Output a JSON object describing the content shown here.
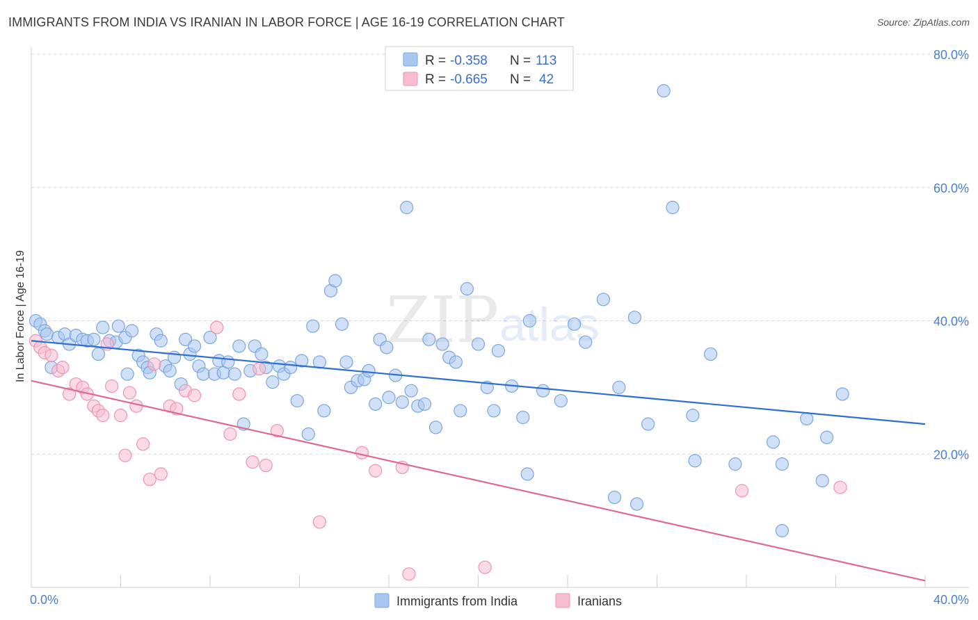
{
  "title": "IMMIGRANTS FROM INDIA VS IRANIAN IN LABOR FORCE | AGE 16-19 CORRELATION CHART",
  "source": "Source: ZipAtlas.com",
  "watermark": {
    "zip": "ZIP",
    "atlas": "atlas"
  },
  "colors": {
    "blue_fill": "#a9c6ef",
    "blue_stroke": "#7aa6e2",
    "blue_line": "#2f6fd0",
    "pink_fill": "#f6bdd0",
    "pink_stroke": "#ee93b3",
    "pink_line": "#e0688f",
    "grid": "#d9d9d9",
    "tick_text": "#4a7fd0"
  },
  "legend": {
    "rows": [
      {
        "r_label": "R =",
        "r_value": "-0.358",
        "n_label": "N =",
        "n_value": "113"
      },
      {
        "r_label": "R =",
        "r_value": "-0.665",
        "n_label": "N =",
        "n_value": "42"
      }
    ]
  },
  "bottom_legend": [
    "Immigrants from India",
    "Iranians"
  ],
  "chart_data": {
    "type": "scatter",
    "title": "IMMIGRANTS FROM INDIA VS IRANIAN IN LABOR FORCE | AGE 16-19 CORRELATION CHART",
    "xlabel": "",
    "ylabel": "In Labor Force | Age 16-19",
    "xlim": [
      0,
      40
    ],
    "ylim": [
      0,
      80
    ],
    "x_tick_labels": [
      "0.0%",
      "40.0%"
    ],
    "y_ticks": [
      20,
      40,
      60,
      80
    ],
    "y_tick_labels": [
      "20.0%",
      "40.0%",
      "60.0%",
      "80.0%"
    ],
    "grid": true,
    "legend_position": "top-center",
    "series": [
      {
        "name": "Immigrants from India",
        "color": "#a9c6ef",
        "trend": {
          "x": [
            0,
            40
          ],
          "y": [
            37.0,
            24.5
          ]
        },
        "points": [
          [
            0.2,
            40.0
          ],
          [
            0.4,
            39.5
          ],
          [
            0.6,
            38.5
          ],
          [
            0.7,
            38.0
          ],
          [
            0.9,
            33.0
          ],
          [
            1.2,
            37.5
          ],
          [
            1.5,
            38.0
          ],
          [
            1.7,
            36.5
          ],
          [
            2.0,
            37.8
          ],
          [
            2.3,
            37.2
          ],
          [
            2.5,
            37.0
          ],
          [
            2.8,
            37.2
          ],
          [
            3.0,
            35.0
          ],
          [
            3.2,
            39.0
          ],
          [
            3.5,
            37.0
          ],
          [
            3.8,
            36.8
          ],
          [
            3.9,
            39.2
          ],
          [
            4.2,
            37.5
          ],
          [
            4.3,
            32.0
          ],
          [
            4.5,
            38.5
          ],
          [
            4.8,
            34.8
          ],
          [
            5.0,
            33.8
          ],
          [
            5.2,
            33.0
          ],
          [
            5.3,
            32.2
          ],
          [
            5.6,
            38.0
          ],
          [
            5.8,
            37.0
          ],
          [
            6.0,
            33.2
          ],
          [
            6.2,
            32.5
          ],
          [
            6.4,
            34.5
          ],
          [
            6.7,
            30.5
          ],
          [
            6.9,
            37.2
          ],
          [
            7.1,
            35.0
          ],
          [
            7.3,
            36.2
          ],
          [
            7.5,
            33.2
          ],
          [
            7.7,
            32.0
          ],
          [
            8.0,
            37.5
          ],
          [
            8.2,
            32.0
          ],
          [
            8.4,
            34.0
          ],
          [
            8.6,
            32.2
          ],
          [
            8.8,
            33.8
          ],
          [
            9.1,
            32.0
          ],
          [
            9.3,
            36.2
          ],
          [
            9.5,
            24.5
          ],
          [
            9.8,
            32.5
          ],
          [
            10.0,
            36.2
          ],
          [
            10.3,
            35.0
          ],
          [
            10.5,
            33.0
          ],
          [
            10.8,
            30.8
          ],
          [
            11.1,
            33.2
          ],
          [
            11.3,
            32.0
          ],
          [
            11.6,
            33.0
          ],
          [
            11.9,
            28.0
          ],
          [
            12.1,
            34.0
          ],
          [
            12.4,
            23.0
          ],
          [
            12.6,
            39.2
          ],
          [
            12.9,
            33.8
          ],
          [
            13.1,
            26.5
          ],
          [
            13.4,
            44.5
          ],
          [
            13.6,
            46.0
          ],
          [
            13.9,
            39.5
          ],
          [
            14.1,
            33.8
          ],
          [
            14.3,
            30.0
          ],
          [
            14.6,
            31.0
          ],
          [
            14.9,
            31.2
          ],
          [
            15.1,
            32.5
          ],
          [
            15.4,
            27.5
          ],
          [
            15.6,
            37.2
          ],
          [
            16.0,
            28.5
          ],
          [
            16.3,
            31.8
          ],
          [
            16.6,
            27.8
          ],
          [
            16.8,
            57.0
          ],
          [
            17.0,
            29.5
          ],
          [
            17.3,
            27.2
          ],
          [
            17.6,
            27.5
          ],
          [
            17.8,
            37.2
          ],
          [
            18.1,
            24.0
          ],
          [
            18.4,
            36.5
          ],
          [
            18.7,
            34.5
          ],
          [
            19.0,
            33.8
          ],
          [
            19.2,
            26.5
          ],
          [
            19.5,
            44.8
          ],
          [
            20.0,
            36.5
          ],
          [
            20.4,
            30.0
          ],
          [
            20.7,
            26.5
          ],
          [
            21.5,
            30.2
          ],
          [
            22.0,
            25.5
          ],
          [
            22.2,
            17.0
          ],
          [
            22.9,
            29.5
          ],
          [
            23.7,
            28.0
          ],
          [
            24.3,
            39.5
          ],
          [
            24.8,
            36.8
          ],
          [
            25.6,
            43.2
          ],
          [
            26.1,
            13.5
          ],
          [
            26.3,
            30.0
          ],
          [
            27.0,
            40.5
          ],
          [
            27.1,
            12.5
          ],
          [
            27.6,
            24.5
          ],
          [
            28.3,
            74.5
          ],
          [
            28.7,
            57.0
          ],
          [
            29.6,
            25.8
          ],
          [
            30.4,
            35.0
          ],
          [
            29.7,
            19.0
          ],
          [
            31.5,
            18.5
          ],
          [
            33.2,
            21.8
          ],
          [
            33.6,
            18.5
          ],
          [
            33.6,
            8.5
          ],
          [
            34.7,
            25.3
          ],
          [
            35.4,
            16.0
          ],
          [
            35.6,
            22.5
          ],
          [
            36.3,
            29.0
          ],
          [
            22.3,
            40.0
          ],
          [
            15.9,
            36.0
          ],
          [
            20.9,
            35.5
          ]
        ]
      },
      {
        "name": "Iranians",
        "color": "#f6bdd0",
        "trend": {
          "x": [
            0,
            40
          ],
          "y": [
            31.0,
            1.0
          ]
        },
        "points": [
          [
            0.2,
            37.0
          ],
          [
            0.4,
            36.0
          ],
          [
            0.6,
            35.2
          ],
          [
            0.9,
            34.8
          ],
          [
            1.2,
            32.5
          ],
          [
            1.4,
            33.0
          ],
          [
            1.7,
            29.0
          ],
          [
            2.0,
            30.5
          ],
          [
            2.3,
            30.0
          ],
          [
            2.5,
            29.0
          ],
          [
            2.8,
            27.2
          ],
          [
            3.0,
            26.5
          ],
          [
            3.2,
            25.8
          ],
          [
            3.6,
            30.2
          ],
          [
            4.0,
            25.8
          ],
          [
            4.2,
            19.8
          ],
          [
            4.4,
            29.2
          ],
          [
            4.7,
            27.2
          ],
          [
            5.0,
            21.5
          ],
          [
            5.3,
            16.2
          ],
          [
            5.8,
            17.0
          ],
          [
            6.2,
            27.2
          ],
          [
            6.5,
            26.8
          ],
          [
            6.9,
            29.5
          ],
          [
            7.3,
            28.8
          ],
          [
            8.3,
            39.0
          ],
          [
            8.9,
            23.0
          ],
          [
            9.3,
            29.0
          ],
          [
            9.9,
            18.8
          ],
          [
            10.2,
            32.8
          ],
          [
            10.5,
            18.3
          ],
          [
            11.0,
            23.5
          ],
          [
            12.9,
            9.8
          ],
          [
            14.8,
            20.2
          ],
          [
            15.4,
            17.5
          ],
          [
            16.6,
            18.0
          ],
          [
            16.9,
            2.0
          ],
          [
            20.3,
            3.0
          ],
          [
            31.8,
            14.5
          ],
          [
            36.2,
            15.0
          ],
          [
            3.4,
            36.5
          ],
          [
            5.5,
            33.5
          ]
        ]
      }
    ]
  }
}
